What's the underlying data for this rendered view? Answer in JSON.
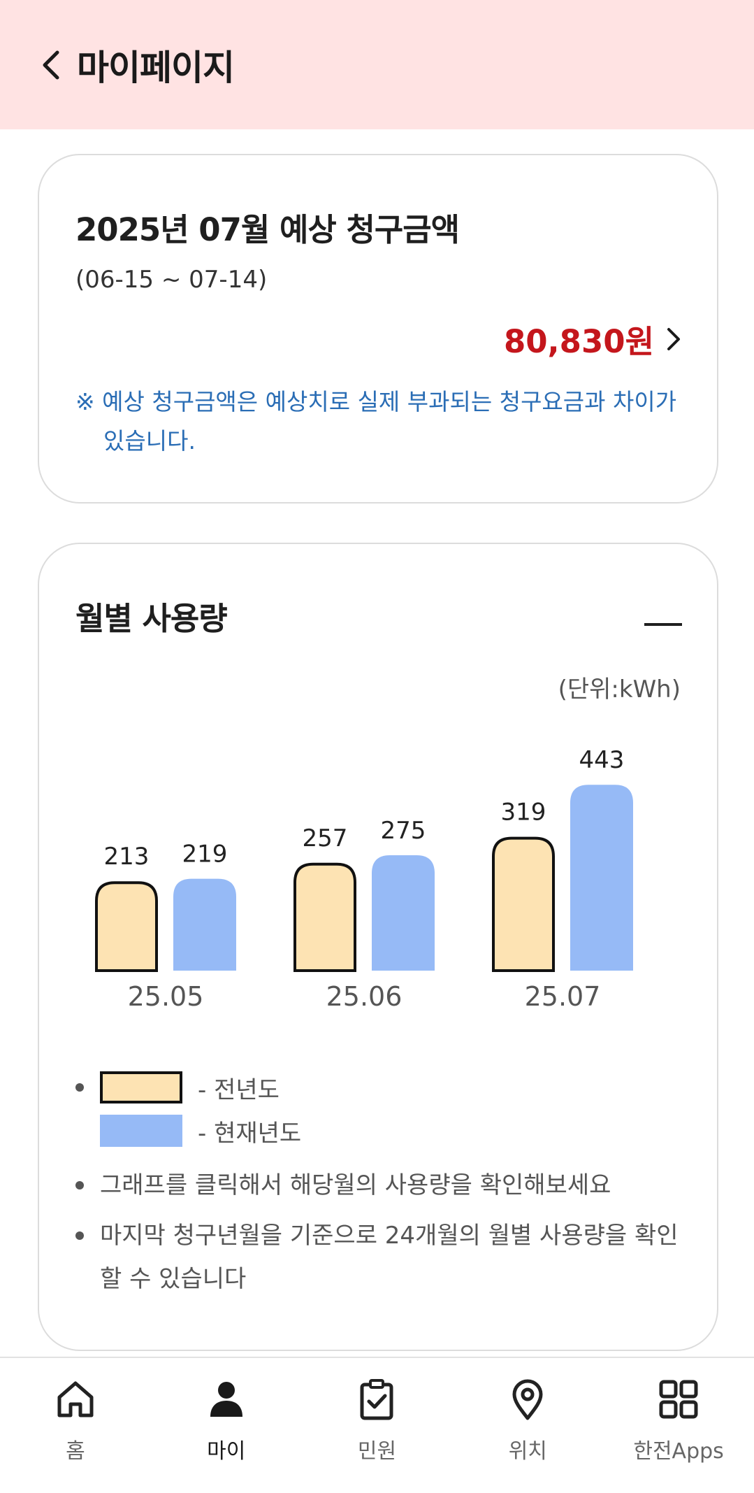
{
  "header": {
    "title": "마이페이지"
  },
  "bill": {
    "title": "2025년 07월 예상 청구금액",
    "period": "(06-15 ~ 07-14)",
    "amount": "80,830원",
    "note": "※ 예상 청구금액은 예상치로 실제 부과되는 청구요금과 차이가 있습니다."
  },
  "usage": {
    "title": "월별 사용량",
    "unit": "(단위:kWh)",
    "legend_prev": "- 전년도",
    "legend_cur": "- 현재년도",
    "notes": [
      "그래프를 클릭해서 해당월의 사용량을 확인해보세요",
      "마지막 청구년월을 기준으로 24개월의 월별 사용량을 확인할 수 있습니다"
    ]
  },
  "chart_data": {
    "type": "bar",
    "categories": [
      "25.05",
      "25.06",
      "25.07"
    ],
    "series": [
      {
        "name": "전년도",
        "values": [
          213,
          257,
          319
        ],
        "color": "#fde3b3"
      },
      {
        "name": "현재년도",
        "values": [
          219,
          275,
          443
        ],
        "color": "#96baf6"
      }
    ],
    "title": "월별 사용량",
    "ylabel": "(단위:kWh)",
    "grid": false
  },
  "nav": {
    "items": [
      {
        "label": "홈",
        "icon": "home-icon"
      },
      {
        "label": "마이",
        "icon": "person-icon"
      },
      {
        "label": "민원",
        "icon": "clipboard-check-icon"
      },
      {
        "label": "위치",
        "icon": "location-pin-icon"
      },
      {
        "label": "한전Apps",
        "icon": "apps-grid-icon"
      }
    ],
    "active_index": 1
  },
  "colors": {
    "header_bg": "#ffe3e3",
    "amount": "#c4161c",
    "note": "#2a6db5",
    "bar_prev": "#fde3b3",
    "bar_cur": "#96baf6"
  }
}
